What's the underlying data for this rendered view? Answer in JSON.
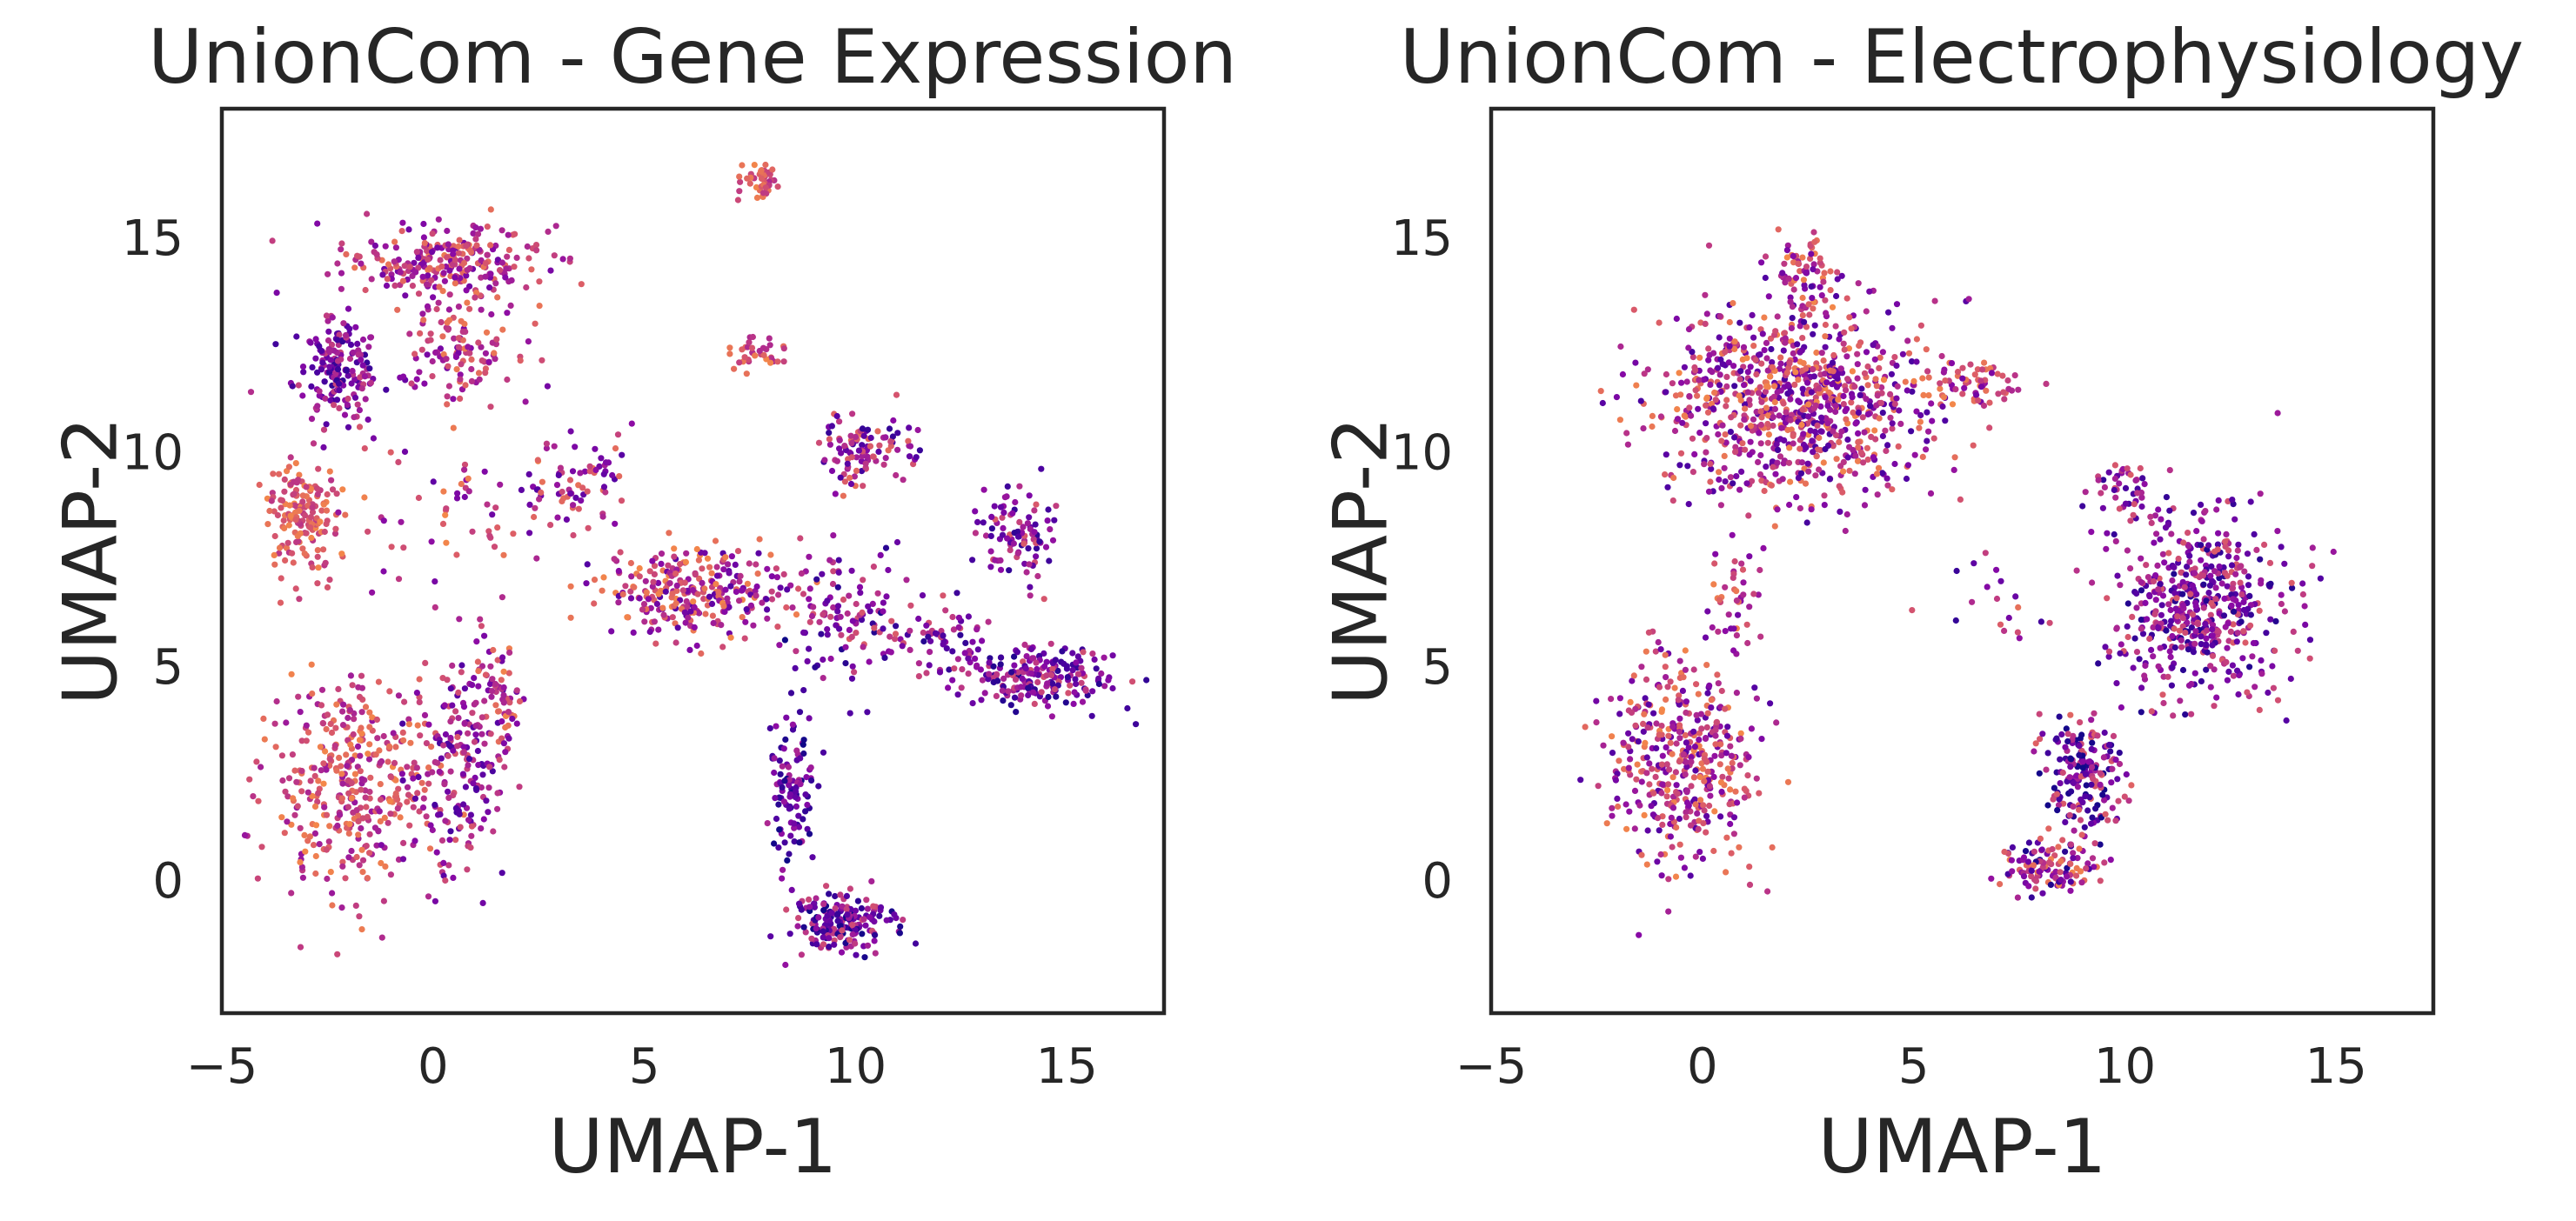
{
  "figure": {
    "background": "#ffffff",
    "colormap": [
      "#0d0887",
      "#5302a3",
      "#8b0aa5",
      "#b83289",
      "#db5c68",
      "#f48849"
    ]
  },
  "chart_data": [
    {
      "type": "scatter",
      "title": "UnionCom - Gene Expression",
      "xlabel": "UMAP-1",
      "ylabel": "UMAP-2",
      "xlim": [
        -5,
        17.3
      ],
      "ylim": [
        -3.1,
        18.0
      ],
      "xticks": [
        "−5",
        "0",
        "5",
        "10",
        "15"
      ],
      "xtick_values": [
        -5,
        0,
        5,
        10,
        15
      ],
      "yticks": [
        "0",
        "5",
        "10",
        "15"
      ],
      "ytick_values": [
        0,
        5,
        10,
        15
      ],
      "grid": false,
      "legend": "none",
      "clusters": [
        {
          "cx": 0.2,
          "cy": 14.4,
          "rx": 2.3,
          "ry": 0.9,
          "n": 260,
          "cmin": 0.3,
          "cmax": 0.95
        },
        {
          "cx": -2.3,
          "cy": 11.9,
          "rx": 1.0,
          "ry": 1.2,
          "n": 180,
          "cmin": 0.1,
          "cmax": 0.7
        },
        {
          "cx": 0.5,
          "cy": 12.3,
          "rx": 1.5,
          "ry": 1.2,
          "n": 110,
          "cmin": 0.3,
          "cmax": 0.95
        },
        {
          "cx": -3.1,
          "cy": 8.5,
          "rx": 0.9,
          "ry": 1.2,
          "n": 170,
          "cmin": 0.6,
          "cmax": 1.0
        },
        {
          "cx": 1.0,
          "cy": 8.8,
          "rx": 3.2,
          "ry": 2.2,
          "n": 80,
          "cmin": 0.2,
          "cmax": 1.0
        },
        {
          "cx": -1.9,
          "cy": 2.2,
          "rx": 2.1,
          "ry": 2.5,
          "n": 380,
          "cmin": 0.45,
          "cmax": 1.0
        },
        {
          "cx": 0.6,
          "cy": 2.7,
          "rx": 1.1,
          "ry": 2.5,
          "n": 180,
          "cmin": 0.15,
          "cmax": 0.8
        },
        {
          "cx": 1.6,
          "cy": 4.3,
          "rx": 0.6,
          "ry": 1.3,
          "n": 60,
          "cmin": 0.3,
          "cmax": 1.0
        },
        {
          "cx": 3.6,
          "cy": 9.4,
          "rx": 1.4,
          "ry": 1.2,
          "n": 60,
          "cmin": 0.2,
          "cmax": 0.9
        },
        {
          "cx": 6.2,
          "cy": 6.7,
          "rx": 2.2,
          "ry": 1.0,
          "n": 280,
          "cmin": 0.2,
          "cmax": 1.0
        },
        {
          "cx": 7.7,
          "cy": 16.3,
          "rx": 0.45,
          "ry": 0.5,
          "n": 45,
          "cmin": 0.55,
          "cmax": 1.0
        },
        {
          "cx": 7.7,
          "cy": 12.3,
          "rx": 0.7,
          "ry": 0.4,
          "n": 35,
          "cmin": 0.55,
          "cmax": 1.0
        },
        {
          "cx": 10.2,
          "cy": 10.0,
          "rx": 1.1,
          "ry": 0.8,
          "n": 110,
          "cmin": 0.1,
          "cmax": 0.9
        },
        {
          "cx": 9.8,
          "cy": 6.2,
          "rx": 1.5,
          "ry": 1.5,
          "n": 110,
          "cmin": 0.05,
          "cmax": 0.8
        },
        {
          "cx": 8.5,
          "cy": 2.2,
          "rx": 0.6,
          "ry": 1.8,
          "n": 110,
          "cmin": 0.0,
          "cmax": 0.55
        },
        {
          "cx": 9.7,
          "cy": -1.0,
          "rx": 1.2,
          "ry": 0.7,
          "n": 190,
          "cmin": 0.0,
          "cmax": 0.75
        },
        {
          "cx": 13.8,
          "cy": 8.1,
          "rx": 0.9,
          "ry": 1.1,
          "n": 100,
          "cmin": 0.1,
          "cmax": 0.8
        },
        {
          "cx": 14.2,
          "cy": 4.7,
          "rx": 1.9,
          "ry": 0.7,
          "n": 210,
          "cmin": 0.05,
          "cmax": 0.75
        },
        {
          "cx": 12.0,
          "cy": 5.6,
          "rx": 1.3,
          "ry": 0.8,
          "n": 60,
          "cmin": 0.1,
          "cmax": 0.8
        }
      ]
    },
    {
      "type": "scatter",
      "title": "UnionCom - Electrophysiology",
      "xlabel": "UMAP-1",
      "ylabel": "UMAP-2",
      "xlim": [
        -5,
        17.3
      ],
      "ylim": [
        -3.1,
        18.0
      ],
      "xticks": [
        "−5",
        "0",
        "5",
        "10",
        "15"
      ],
      "xtick_values": [
        -5,
        0,
        5,
        10,
        15
      ],
      "yticks": [
        "0",
        "5",
        "10",
        "15"
      ],
      "ytick_values": [
        0,
        5,
        10,
        15
      ],
      "grid": false,
      "legend": "none",
      "clusters": [
        {
          "cx": 2.3,
          "cy": 11.2,
          "rx": 3.2,
          "ry": 2.3,
          "n": 900,
          "cmin": 0.15,
          "cmax": 1.0
        },
        {
          "cx": 2.4,
          "cy": 14.2,
          "rx": 0.6,
          "ry": 0.8,
          "n": 60,
          "cmin": 0.3,
          "cmax": 1.0
        },
        {
          "cx": 6.5,
          "cy": 11.6,
          "rx": 1.2,
          "ry": 0.5,
          "n": 60,
          "cmin": 0.3,
          "cmax": 1.0
        },
        {
          "cx": -0.5,
          "cy": 2.8,
          "rx": 1.8,
          "ry": 2.4,
          "n": 420,
          "cmin": 0.2,
          "cmax": 1.0
        },
        {
          "cx": 0.8,
          "cy": 6.5,
          "rx": 0.6,
          "ry": 1.3,
          "n": 40,
          "cmin": 0.3,
          "cmax": 1.0
        },
        {
          "cx": 11.8,
          "cy": 6.4,
          "rx": 1.9,
          "ry": 2.1,
          "n": 520,
          "cmin": 0.05,
          "cmax": 0.8
        },
        {
          "cx": 10.1,
          "cy": 9.2,
          "rx": 0.8,
          "ry": 0.8,
          "n": 50,
          "cmin": 0.1,
          "cmax": 0.8
        },
        {
          "cx": 9.0,
          "cy": 2.4,
          "rx": 0.9,
          "ry": 1.5,
          "n": 190,
          "cmin": 0.0,
          "cmax": 0.85
        },
        {
          "cx": 8.2,
          "cy": 0.3,
          "rx": 1.1,
          "ry": 0.6,
          "n": 120,
          "cmin": 0.0,
          "cmax": 1.0
        },
        {
          "cx": 7.0,
          "cy": 6.6,
          "rx": 1.5,
          "ry": 0.9,
          "n": 20,
          "cmin": 0.1,
          "cmax": 0.9
        }
      ]
    }
  ]
}
